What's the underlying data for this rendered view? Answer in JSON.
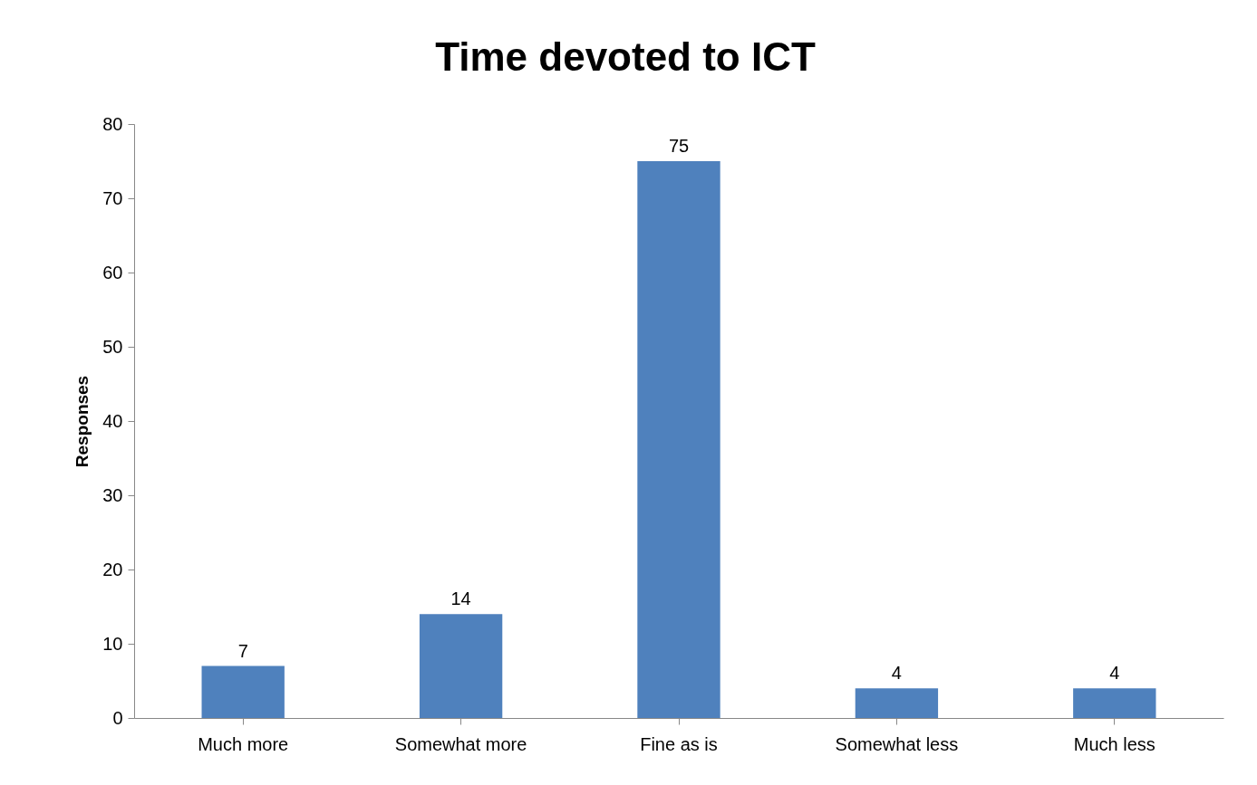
{
  "chart_data": {
    "type": "bar",
    "title": "Time devoted to ICT",
    "ylabel": "Responses",
    "categories": [
      "Much more",
      "Somewhat more",
      "Fine as is",
      "Somewhat less",
      "Much less"
    ],
    "values": [
      7,
      14,
      75,
      4,
      4
    ],
    "color": "#4f81bd",
    "ylim": [
      0,
      80
    ],
    "yticks": [
      0,
      10,
      20,
      30,
      40,
      50,
      60,
      70,
      80
    ],
    "grid": false,
    "data_labels": true
  }
}
